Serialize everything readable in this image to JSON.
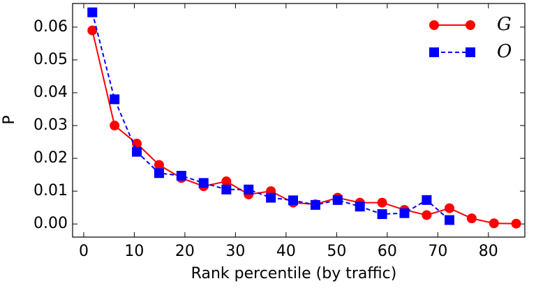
{
  "chart_data": {
    "type": "line",
    "x_label": "Rank percentile (by traffic)",
    "y_label": "P",
    "xlim": [
      -2.2,
      87.2
    ],
    "ylim": [
      -0.004,
      0.0672
    ],
    "xticks": [
      0,
      10,
      20,
      30,
      40,
      50,
      60,
      70,
      80
    ],
    "yticks": [
      {
        "value": 0,
        "label": "0.00"
      },
      {
        "value": 0.01,
        "label": "0.01"
      },
      {
        "value": 0.02,
        "label": "0.02"
      },
      {
        "value": 0.03,
        "label": "0.03"
      },
      {
        "value": 0.04,
        "label": "0.04"
      },
      {
        "value": 0.05,
        "label": "0.05"
      },
      {
        "value": 0.06,
        "label": "0.06"
      }
    ],
    "grid": false,
    "legend": "upper right",
    "series": [
      {
        "name": "G",
        "color": "#ff0000",
        "marker": "circle",
        "dash": false,
        "x": [
          1.7,
          6.1,
          10.5,
          14.9,
          19.3,
          23.7,
          28.2,
          32.6,
          37,
          41.4,
          45.8,
          50.2,
          54.6,
          59,
          63.4,
          67.8,
          72.3,
          76.7,
          81.1,
          85.5
        ],
        "values": [
          0.059,
          0.03,
          0.0245,
          0.018,
          0.014,
          0.0115,
          0.013,
          0.009,
          0.01,
          0.0065,
          0.006,
          0.008,
          0.0065,
          0.0065,
          0.0043,
          0.0027,
          0.0048,
          0.0017,
          0.0002,
          0.0001
        ]
      },
      {
        "name": "O",
        "color": "#0000ff",
        "marker": "square",
        "dash": true,
        "x": [
          1.7,
          6.1,
          10.5,
          14.9,
          19.3,
          23.7,
          28.2,
          32.6,
          37,
          41.4,
          45.8,
          50.2,
          54.6,
          59,
          63.4,
          67.8,
          72.3
        ],
        "values": [
          0.0645,
          0.038,
          0.022,
          0.0155,
          0.0147,
          0.0125,
          0.0105,
          0.0105,
          0.008,
          0.0072,
          0.0058,
          0.0073,
          0.0053,
          0.003,
          0.0033,
          0.0073,
          0.0012
        ]
      }
    ]
  }
}
